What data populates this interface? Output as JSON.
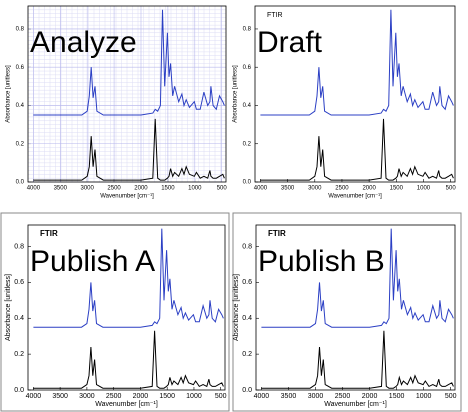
{
  "chart_data": [
    {
      "type": "line",
      "annotation": "Analyze",
      "xlabel": "Wavenumber [cm⁻¹]",
      "ylabel": "Absorbance [unitless]",
      "grid": true,
      "frame": false,
      "xlim": [
        4100,
        420
      ],
      "ylim": [
        0,
        0.92
      ],
      "xticks": [
        4000,
        3500,
        3000,
        2500,
        2000,
        1500,
        1000,
        500
      ],
      "yticks": [
        {
          "value": 0,
          "label": "0.0"
        },
        0.2,
        0.4,
        0.6,
        0.8
      ],
      "x": [
        4000,
        3500,
        3100,
        3000,
        2960,
        2925,
        2890,
        2855,
        2820,
        2700,
        2000,
        1780,
        1735,
        1690,
        1640,
        1600,
        1560,
        1510,
        1480,
        1450,
        1410,
        1375,
        1300,
        1240,
        1200,
        1160,
        1100,
        1010,
        970,
        900,
        830,
        760,
        720,
        700,
        660,
        600,
        540,
        480,
        450
      ],
      "series": [
        {
          "color": "#000000",
          "values": [
            0.01,
            0.01,
            0.01,
            0.03,
            0.08,
            0.24,
            0.08,
            0.17,
            0.03,
            0.01,
            0.01,
            0.02,
            0.33,
            0.02,
            0.01,
            0.01,
            0.01,
            0.02,
            0.03,
            0.07,
            0.03,
            0.05,
            0.03,
            0.07,
            0.04,
            0.08,
            0.04,
            0.03,
            0.05,
            0.02,
            0.03,
            0.02,
            0.06,
            0.03,
            0.02,
            0.02,
            0.03,
            0.04,
            0.02
          ]
        },
        {
          "color": "#2b3fc4",
          "values": [
            0.35,
            0.35,
            0.35,
            0.37,
            0.45,
            0.6,
            0.44,
            0.5,
            0.37,
            0.35,
            0.35,
            0.36,
            0.38,
            0.37,
            0.4,
            0.9,
            0.5,
            0.78,
            0.55,
            0.62,
            0.45,
            0.5,
            0.42,
            0.46,
            0.4,
            0.43,
            0.39,
            0.42,
            0.38,
            0.38,
            0.47,
            0.4,
            0.42,
            0.5,
            0.4,
            0.38,
            0.45,
            0.42,
            0.4
          ]
        }
      ]
    },
    {
      "type": "line",
      "title": "FTIR",
      "annotation": "Draft",
      "xlabel": "Wavenumber [cm⁻¹]",
      "ylabel": "Absorbance [unitless]",
      "grid": false,
      "frame": false,
      "xlim": [
        4100,
        420
      ],
      "ylim": [
        0,
        0.92
      ],
      "xticks": [
        4000,
        3500,
        3000,
        2500,
        2000,
        1500,
        1000,
        500
      ],
      "yticks": [
        {
          "value": 0,
          "label": "0.0"
        },
        0.2,
        0.4,
        0.6,
        0.8
      ],
      "x": [
        4000,
        3500,
        3100,
        3000,
        2960,
        2925,
        2890,
        2855,
        2820,
        2700,
        2000,
        1780,
        1735,
        1690,
        1640,
        1600,
        1560,
        1510,
        1480,
        1450,
        1410,
        1375,
        1300,
        1240,
        1200,
        1160,
        1100,
        1010,
        970,
        900,
        830,
        760,
        720,
        700,
        660,
        600,
        540,
        480,
        450
      ],
      "series": [
        {
          "color": "#000000",
          "values": [
            0.01,
            0.01,
            0.01,
            0.03,
            0.08,
            0.24,
            0.08,
            0.17,
            0.03,
            0.01,
            0.01,
            0.02,
            0.33,
            0.02,
            0.01,
            0.01,
            0.01,
            0.02,
            0.03,
            0.07,
            0.03,
            0.05,
            0.03,
            0.07,
            0.04,
            0.08,
            0.04,
            0.03,
            0.05,
            0.02,
            0.03,
            0.02,
            0.06,
            0.03,
            0.02,
            0.02,
            0.03,
            0.04,
            0.02
          ]
        },
        {
          "color": "#2b3fc4",
          "values": [
            0.35,
            0.35,
            0.35,
            0.37,
            0.45,
            0.6,
            0.44,
            0.5,
            0.37,
            0.35,
            0.35,
            0.36,
            0.38,
            0.37,
            0.4,
            0.9,
            0.5,
            0.78,
            0.55,
            0.62,
            0.45,
            0.5,
            0.42,
            0.46,
            0.4,
            0.43,
            0.39,
            0.42,
            0.38,
            0.38,
            0.47,
            0.4,
            0.42,
            0.5,
            0.4,
            0.38,
            0.45,
            0.42,
            0.4
          ]
        }
      ]
    },
    {
      "type": "line",
      "title": "FTIR",
      "annotation": "Publish A",
      "xlabel": "Wavenumber [cm⁻¹]",
      "ylabel": "Absorbance [unitless]",
      "grid": false,
      "frame": true,
      "xlim": [
        4100,
        420
      ],
      "ylim": [
        0,
        0.92
      ],
      "xticks": [
        4000,
        3500,
        3000,
        2500,
        2000,
        1500,
        1000,
        500
      ],
      "yticks": [
        {
          "value": 0,
          "label": "0.0"
        },
        0.2,
        0.4,
        0.6,
        0.8
      ],
      "x": [
        4000,
        3500,
        3100,
        3000,
        2960,
        2925,
        2890,
        2855,
        2820,
        2700,
        2000,
        1780,
        1735,
        1690,
        1640,
        1600,
        1560,
        1510,
        1480,
        1450,
        1410,
        1375,
        1300,
        1240,
        1200,
        1160,
        1100,
        1010,
        970,
        900,
        830,
        760,
        720,
        700,
        660,
        600,
        540,
        480,
        450
      ],
      "series": [
        {
          "color": "#000000",
          "values": [
            0.01,
            0.01,
            0.01,
            0.03,
            0.08,
            0.24,
            0.08,
            0.17,
            0.03,
            0.01,
            0.01,
            0.02,
            0.33,
            0.02,
            0.01,
            0.01,
            0.01,
            0.02,
            0.03,
            0.07,
            0.03,
            0.05,
            0.03,
            0.07,
            0.04,
            0.08,
            0.04,
            0.03,
            0.05,
            0.02,
            0.03,
            0.02,
            0.06,
            0.03,
            0.02,
            0.02,
            0.03,
            0.04,
            0.02
          ]
        },
        {
          "color": "#2b3fc4",
          "values": [
            0.35,
            0.35,
            0.35,
            0.37,
            0.45,
            0.6,
            0.44,
            0.5,
            0.37,
            0.35,
            0.35,
            0.36,
            0.38,
            0.37,
            0.4,
            0.9,
            0.5,
            0.78,
            0.55,
            0.62,
            0.45,
            0.5,
            0.42,
            0.46,
            0.4,
            0.43,
            0.39,
            0.42,
            0.38,
            0.38,
            0.47,
            0.4,
            0.42,
            0.5,
            0.4,
            0.38,
            0.45,
            0.42,
            0.4
          ]
        }
      ]
    },
    {
      "type": "line",
      "title": "FTIR",
      "annotation": "Publish B",
      "xlabel": "Wavenumber [cm⁻¹]",
      "ylabel": "Absorbance [unitless]",
      "grid": false,
      "frame": true,
      "xlim": [
        4100,
        420
      ],
      "ylim": [
        0,
        0.92
      ],
      "xticks": [
        4000,
        3500,
        3000,
        2500,
        2000,
        1500,
        1000,
        500
      ],
      "yticks": [
        {
          "value": 0,
          "label": "0.0"
        },
        0.2,
        0.4,
        0.6,
        0.8
      ],
      "x": [
        4000,
        3500,
        3100,
        3000,
        2960,
        2925,
        2890,
        2855,
        2820,
        2700,
        2000,
        1780,
        1735,
        1690,
        1640,
        1600,
        1560,
        1510,
        1480,
        1450,
        1410,
        1375,
        1300,
        1240,
        1200,
        1160,
        1100,
        1010,
        970,
        900,
        830,
        760,
        720,
        700,
        660,
        600,
        540,
        480,
        450
      ],
      "series": [
        {
          "color": "#000000",
          "values": [
            0.01,
            0.01,
            0.01,
            0.03,
            0.08,
            0.24,
            0.08,
            0.17,
            0.03,
            0.01,
            0.01,
            0.02,
            0.33,
            0.02,
            0.01,
            0.01,
            0.01,
            0.02,
            0.03,
            0.07,
            0.03,
            0.05,
            0.03,
            0.07,
            0.04,
            0.08,
            0.04,
            0.03,
            0.05,
            0.02,
            0.03,
            0.02,
            0.06,
            0.03,
            0.02,
            0.02,
            0.03,
            0.04,
            0.02
          ]
        },
        {
          "color": "#2b3fc4",
          "values": [
            0.35,
            0.35,
            0.35,
            0.37,
            0.45,
            0.6,
            0.44,
            0.5,
            0.37,
            0.35,
            0.35,
            0.36,
            0.38,
            0.37,
            0.4,
            0.9,
            0.5,
            0.78,
            0.55,
            0.62,
            0.45,
            0.5,
            0.42,
            0.46,
            0.4,
            0.43,
            0.39,
            0.42,
            0.38,
            0.38,
            0.47,
            0.4,
            0.42,
            0.5,
            0.4,
            0.38,
            0.45,
            0.42,
            0.4
          ]
        }
      ]
    }
  ]
}
